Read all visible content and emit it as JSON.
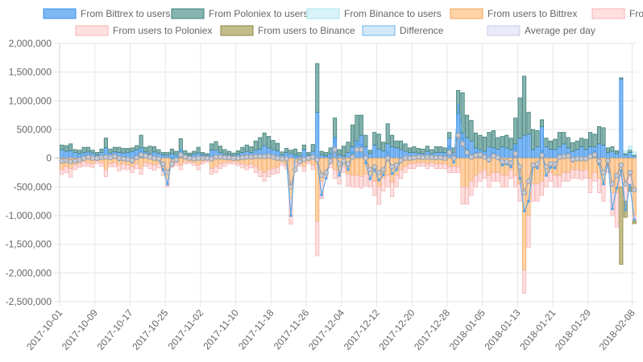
{
  "chart_data": {
    "type": "bar",
    "title": "",
    "xlabel": "",
    "ylabel": "",
    "ylim": [
      -2500000,
      2000000
    ],
    "y_ticks": [
      2000000,
      1500000,
      1000000,
      500000,
      0,
      -500000,
      -1000000,
      -1500000,
      -2000000,
      -2500000
    ],
    "y_tick_labels": [
      "2,000,000",
      "1,500,000",
      "1,000,000",
      "500,000",
      "0",
      "-500,000",
      "-1,000,000",
      "-1,500,000",
      "-2,000,000",
      "-2,500,000"
    ],
    "x_tick_labels": [
      "2017-10-01",
      "2017-10-09",
      "2017-10-17",
      "2017-10-25",
      "2017-11-02",
      "2017-11-10",
      "2017-11-18",
      "2017-11-26",
      "2017-12-04",
      "2017-12-12",
      "2017-12-20",
      "2017-12-28",
      "2018-01-05",
      "2018-01-13",
      "2018-01-21",
      "2018-01-29",
      "2018-02-08"
    ],
    "grid": true,
    "legend_position": "top",
    "stacked": true,
    "start_date": "2017-10-01",
    "categories_count": 131,
    "legend": [
      {
        "name": "From Bittrex to users",
        "fill": "#7db8f5",
        "stroke": "#3c8fe6"
      },
      {
        "name": "From Poloniex to users",
        "fill": "#86b4b0",
        "stroke": "#3e7d76"
      },
      {
        "name": "From Binance to users",
        "fill": "#d9f3f8",
        "stroke": "#a8e3ef"
      },
      {
        "name": "From users to Bittrex",
        "fill": "#ffd3a8",
        "stroke": "#f3a65a"
      },
      {
        "name": "From users to Poloniex",
        "fill": "#ffe0e0",
        "stroke": "#f4b2b2"
      },
      {
        "name": "From users to Binance",
        "fill": "#c3bd8a",
        "stroke": "#8d8640"
      },
      {
        "name": "Difference",
        "fill": "#d2e8f8",
        "stroke": "#6cb4e8"
      },
      {
        "name": "Average per day",
        "fill": "#eaeaf8",
        "stroke": "#c9c9ee"
      }
    ],
    "series": [
      {
        "name": "From Bittrex to users",
        "values": [
          150000,
          120000,
          130000,
          100000,
          80000,
          100000,
          110000,
          90000,
          60000,
          100000,
          180000,
          90000,
          110000,
          100000,
          90000,
          100000,
          120000,
          150000,
          180000,
          110000,
          80000,
          110000,
          90000,
          60000,
          50000,
          80000,
          60000,
          120000,
          70000,
          50000,
          70000,
          90000,
          60000,
          50000,
          140000,
          140000,
          100000,
          70000,
          60000,
          50000,
          70000,
          100000,
          120000,
          100000,
          140000,
          160000,
          220000,
          180000,
          150000,
          130000,
          60000,
          100000,
          80000,
          60000,
          40000,
          150000,
          60000,
          120000,
          800000,
          60000,
          40000,
          80000,
          350000,
          60000,
          40000,
          100000,
          200000,
          300000,
          400000,
          200000,
          80000,
          230000,
          160000,
          130000,
          250000,
          200000,
          180000,
          150000,
          120000,
          100000,
          100000,
          90000,
          80000,
          120000,
          80000,
          100000,
          100000,
          100000,
          350000,
          100000,
          780000,
          440000,
          360000,
          300000,
          180000,
          150000,
          120000,
          200000,
          180000,
          160000,
          200000,
          180000,
          150000,
          250000,
          350000,
          400000,
          420000,
          150000,
          200000,
          550000,
          200000,
          160000,
          150000,
          200000,
          250000,
          180000,
          120000,
          150000,
          200000,
          150000,
          200000,
          200000,
          250000,
          230000,
          100000,
          120000,
          80000,
          1380000,
          60000,
          100000,
          40000
        ],
        "color": "#7db8f5"
      },
      {
        "name": "From Poloniex to users",
        "values": [
          80000,
          100000,
          120000,
          50000,
          60000,
          90000,
          80000,
          50000,
          40000,
          60000,
          170000,
          70000,
          80000,
          90000,
          80000,
          70000,
          60000,
          70000,
          220000,
          80000,
          130000,
          90000,
          60000,
          40000,
          50000,
          80000,
          60000,
          220000,
          60000,
          40000,
          50000,
          100000,
          40000,
          30000,
          110000,
          150000,
          110000,
          80000,
          60000,
          40000,
          60000,
          90000,
          110000,
          100000,
          160000,
          200000,
          220000,
          200000,
          160000,
          130000,
          50000,
          70000,
          60000,
          100000,
          60000,
          80000,
          40000,
          120000,
          850000,
          60000,
          60000,
          100000,
          350000,
          90000,
          170000,
          180000,
          380000,
          450000,
          350000,
          200000,
          60000,
          220000,
          260000,
          150000,
          350000,
          200000,
          120000,
          150000,
          130000,
          80000,
          100000,
          80000,
          80000,
          90000,
          70000,
          100000,
          100000,
          80000,
          100000,
          80000,
          400000,
          700000,
          390000,
          360000,
          260000,
          250000,
          250000,
          250000,
          300000,
          200000,
          180000,
          220000,
          200000,
          450000,
          700000,
          1030000,
          380000,
          350000,
          280000,
          120000,
          150000,
          140000,
          180000,
          250000,
          200000,
          180000,
          150000,
          150000,
          150000,
          180000,
          250000,
          220000,
          300000,
          300000,
          80000,
          80000,
          50000,
          20000,
          30000,
          50000,
          20000
        ],
        "color": "#86b4b0"
      },
      {
        "name": "From Binance to users",
        "values": [
          0,
          0,
          0,
          0,
          0,
          0,
          0,
          0,
          0,
          0,
          0,
          0,
          0,
          0,
          0,
          0,
          0,
          0,
          0,
          0,
          0,
          0,
          0,
          0,
          0,
          0,
          0,
          0,
          0,
          0,
          0,
          0,
          0,
          0,
          0,
          0,
          0,
          0,
          0,
          0,
          0,
          0,
          0,
          0,
          0,
          0,
          0,
          0,
          0,
          0,
          0,
          0,
          0,
          0,
          0,
          0,
          0,
          0,
          0,
          0,
          0,
          0,
          0,
          0,
          0,
          0,
          0,
          0,
          0,
          0,
          0,
          0,
          0,
          0,
          0,
          0,
          0,
          0,
          0,
          0,
          0,
          0,
          0,
          0,
          0,
          0,
          0,
          0,
          0,
          0,
          0,
          0,
          0,
          0,
          0,
          0,
          0,
          0,
          0,
          0,
          0,
          0,
          0,
          0,
          0,
          0,
          0,
          0,
          0,
          0,
          0,
          0,
          0,
          0,
          0,
          0,
          0,
          0,
          0,
          0,
          0,
          0,
          0,
          0,
          0,
          0,
          0,
          0,
          40000,
          60000,
          50000
        ],
        "color": "#d9f3f8"
      },
      {
        "name": "From users to Bittrex",
        "values": [
          -200000,
          -150000,
          -180000,
          -120000,
          -100000,
          -60000,
          -80000,
          -100000,
          -50000,
          -80000,
          -200000,
          -100000,
          -80000,
          -120000,
          -100000,
          -120000,
          -150000,
          -100000,
          -180000,
          -80000,
          -100000,
          -120000,
          -100000,
          -200000,
          -350000,
          -100000,
          -80000,
          -120000,
          -60000,
          -60000,
          -80000,
          -120000,
          -60000,
          -40000,
          -180000,
          -150000,
          -100000,
          -80000,
          -60000,
          -60000,
          -80000,
          -100000,
          -120000,
          -100000,
          -150000,
          -200000,
          -250000,
          -200000,
          -180000,
          -160000,
          -80000,
          -120000,
          -700000,
          -80000,
          -80000,
          -150000,
          -60000,
          -120000,
          -1100000,
          -400000,
          -200000,
          -100000,
          -200000,
          -250000,
          -150000,
          -280000,
          -300000,
          -300000,
          -320000,
          -280000,
          -300000,
          -400000,
          -500000,
          -350000,
          -300000,
          -420000,
          -300000,
          -200000,
          -150000,
          -100000,
          -100000,
          -80000,
          -80000,
          -100000,
          -80000,
          -100000,
          -100000,
          -100000,
          -150000,
          -150000,
          -150000,
          -500000,
          -500000,
          -400000,
          -300000,
          -250000,
          -200000,
          -300000,
          -250000,
          -250000,
          -300000,
          -300000,
          -200000,
          -300000,
          -450000,
          -1950000,
          -1000000,
          -450000,
          -450000,
          -400000,
          -300000,
          -250000,
          -300000,
          -300000,
          -250000,
          -250000,
          -200000,
          -200000,
          -220000,
          -200000,
          -350000,
          -250000,
          -350000,
          -450000,
          -150000,
          -600000,
          -600000,
          -300000,
          -450000,
          -300000,
          -1000000
        ],
        "color": "#ffd3a8"
      },
      {
        "name": "From users to Poloniex",
        "values": [
          -80000,
          -100000,
          -150000,
          -80000,
          -60000,
          -80000,
          -60000,
          -60000,
          -40000,
          -60000,
          -120000,
          -50000,
          -70000,
          -100000,
          -90000,
          -80000,
          -100000,
          -80000,
          -100000,
          -60000,
          -80000,
          -90000,
          -70000,
          -100000,
          -150000,
          -60000,
          -50000,
          -80000,
          -40000,
          -30000,
          -50000,
          -80000,
          -40000,
          -30000,
          -100000,
          -100000,
          -80000,
          -60000,
          -40000,
          -40000,
          -50000,
          -70000,
          -80000,
          -70000,
          -100000,
          -120000,
          -150000,
          -120000,
          -100000,
          -100000,
          -50000,
          -70000,
          -450000,
          -60000,
          -60000,
          -80000,
          -40000,
          -80000,
          -600000,
          -300000,
          -150000,
          -70000,
          -150000,
          -200000,
          -100000,
          -200000,
          -200000,
          -200000,
          -200000,
          -200000,
          -200000,
          -250000,
          -300000,
          -220000,
          -200000,
          -250000,
          -200000,
          -150000,
          -100000,
          -80000,
          -80000,
          -60000,
          -60000,
          -80000,
          -60000,
          -80000,
          -80000,
          -80000,
          -100000,
          -100000,
          -100000,
          -300000,
          -300000,
          -250000,
          -200000,
          -150000,
          -150000,
          -200000,
          -150000,
          -150000,
          -200000,
          -200000,
          -150000,
          -200000,
          -300000,
          -400000,
          -550000,
          -300000,
          -300000,
          -250000,
          -200000,
          -150000,
          -200000,
          -200000,
          -150000,
          -150000,
          -150000,
          -150000,
          -150000,
          -150000,
          -250000,
          -150000,
          -250000,
          -300000,
          -100000,
          -400000,
          -600000,
          -200000,
          -300000,
          -200000,
          -100000
        ],
        "color": "#ffe0e0"
      },
      {
        "name": "From users to Binance",
        "values": [
          0,
          0,
          0,
          0,
          0,
          0,
          0,
          0,
          0,
          0,
          0,
          0,
          0,
          0,
          0,
          0,
          0,
          0,
          0,
          0,
          0,
          0,
          0,
          0,
          0,
          0,
          0,
          0,
          0,
          0,
          0,
          0,
          0,
          0,
          0,
          0,
          0,
          0,
          0,
          0,
          0,
          0,
          0,
          0,
          0,
          0,
          0,
          0,
          0,
          0,
          0,
          0,
          0,
          0,
          0,
          0,
          0,
          0,
          0,
          0,
          0,
          0,
          0,
          0,
          0,
          0,
          0,
          0,
          0,
          0,
          0,
          0,
          0,
          0,
          0,
          0,
          0,
          0,
          0,
          0,
          0,
          0,
          0,
          0,
          0,
          0,
          0,
          0,
          0,
          0,
          0,
          0,
          0,
          0,
          0,
          0,
          0,
          0,
          0,
          0,
          0,
          0,
          0,
          0,
          0,
          0,
          0,
          0,
          0,
          0,
          0,
          0,
          0,
          0,
          0,
          0,
          0,
          0,
          0,
          0,
          0,
          0,
          0,
          0,
          0,
          0,
          0,
          -1350000,
          -280000,
          -80000,
          -40000
        ],
        "color": "#c3bd8a"
      }
    ],
    "difference": [
      -50000,
      -30000,
      -80000,
      -50000,
      -20000,
      50000,
      50000,
      -20000,
      10000,
      20000,
      30000,
      10000,
      40000,
      -30000,
      -20000,
      -30000,
      -70000,
      40000,
      120000,
      50000,
      30000,
      -10000,
      -20000,
      -200000,
      -450000,
      0,
      10000,
      140000,
      30000,
      0,
      -10000,
      -10000,
      0,
      10000,
      -30000,
      40000,
      30000,
      10000,
      20000,
      -10000,
      0,
      20000,
      30000,
      30000,
      50000,
      40000,
      40000,
      60000,
      30000,
      0,
      -20000,
      -20000,
      -1000000,
      20000,
      -40000,
      0,
      0,
      40000,
      -50000,
      -640000,
      -350000,
      10000,
      350000,
      -300000,
      -40000,
      -200000,
      80000,
      250000,
      230000,
      -80000,
      -360000,
      -200000,
      -380000,
      -290000,
      100000,
      -270000,
      -200000,
      -50000,
      0,
      0,
      20000,
      30000,
      20000,
      30000,
      10000,
      20000,
      20000,
      0,
      200000,
      -70000,
      930000,
      340000,
      150000,
      10000,
      90000,
      100000,
      20000,
      -50000,
      80000,
      10000,
      -120000,
      -100000,
      -150000,
      200000,
      -350000,
      -920000,
      -750000,
      -150000,
      -170000,
      120000,
      -300000,
      -160000,
      -170000,
      50000,
      50000,
      80000,
      -50000,
      -20000,
      -20000,
      -20000,
      50000,
      120000,
      -100000,
      -450000,
      -60000,
      -880000,
      -520000,
      -220000,
      -900000,
      -470000,
      -1070000
    ],
    "average_per_day": [
      -50000,
      -40000,
      -60000,
      -50000,
      -30000,
      0,
      20000,
      0,
      0,
      10000,
      20000,
      10000,
      30000,
      0,
      -10000,
      -20000,
      -40000,
      10000,
      60000,
      40000,
      20000,
      0,
      -10000,
      -100000,
      -250000,
      -100000,
      -30000,
      60000,
      20000,
      0,
      -10000,
      0,
      0,
      0,
      -10000,
      20000,
      20000,
      10000,
      10000,
      0,
      0,
      10000,
      20000,
      20000,
      30000,
      30000,
      30000,
      40000,
      20000,
      0,
      -10000,
      -10000,
      -500000,
      -200000,
      -60000,
      -20000,
      0,
      20000,
      -30000,
      -300000,
      -250000,
      -50000,
      150000,
      -100000,
      -50000,
      -100000,
      20000,
      150000,
      150000,
      0,
      -200000,
      -150000,
      -250000,
      -200000,
      0,
      -150000,
      -120000,
      -40000,
      0,
      0,
      10000,
      20000,
      10000,
      20000,
      10000,
      10000,
      10000,
      0,
      100000,
      0,
      400000,
      250000,
      100000,
      20000,
      50000,
      60000,
      20000,
      -20000,
      40000,
      10000,
      -60000,
      -60000,
      -80000,
      80000,
      -150000,
      -600000,
      -400000,
      -120000,
      -100000,
      50000,
      -150000,
      -100000,
      -100000,
      20000,
      30000,
      40000,
      -20000,
      -10000,
      -10000,
      -10000,
      30000,
      60000,
      -50000,
      -250000,
      -40000,
      -450000,
      -300000,
      -120000,
      -450000,
      -250000,
      -550000
    ]
  }
}
